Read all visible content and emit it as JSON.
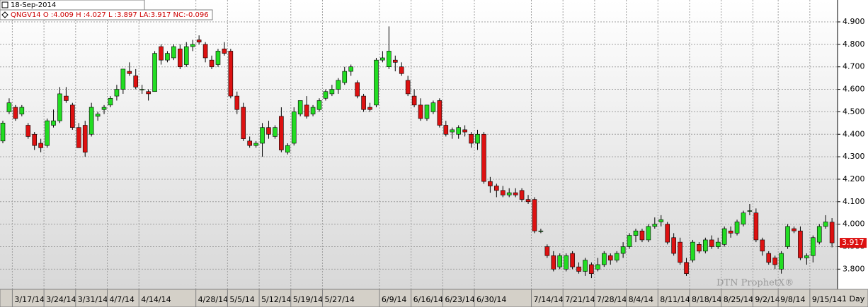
{
  "chart_data": {
    "type": "candlestick",
    "title": "18-Sep-2014",
    "subtitle": "QNGV14 O :4.009 H :4.027 L :3.897 LA:3.917 NC:-0.096",
    "watermark": "DTN ProphetX®",
    "interval": "1 Day",
    "up_color": "#22dd22",
    "down_color": "#dd1111",
    "grid": true,
    "ylim": [
      3.71,
      4.944
    ],
    "yticks": [
      {
        "value": 3.8,
        "label": "3.800"
      },
      {
        "value": 3.9,
        "label": "3.900"
      },
      {
        "value": 4.0,
        "label": "4.000"
      },
      {
        "value": 4.1,
        "label": "4.100"
      },
      {
        "value": 4.2,
        "label": "4.200"
      },
      {
        "value": 4.3,
        "label": "4.300"
      },
      {
        "value": 4.4,
        "label": "4.400"
      },
      {
        "value": 4.5,
        "label": "4.500"
      },
      {
        "value": 4.6,
        "label": "4.600"
      },
      {
        "value": 4.7,
        "label": "4.700"
      },
      {
        "value": 4.8,
        "label": "4.800"
      },
      {
        "value": 4.9,
        "label": "4.900"
      }
    ],
    "categories": [
      null,
      null,
      "3/17/14",
      null,
      null,
      null,
      null,
      "3/24/14",
      null,
      null,
      null,
      null,
      "3/31/14",
      null,
      null,
      null,
      null,
      "4/7/14",
      null,
      null,
      null,
      null,
      "4/14/14",
      null,
      null,
      null,
      null,
      null,
      null,
      null,
      null,
      "4/28/14",
      null,
      null,
      null,
      null,
      "5/5/14",
      null,
      null,
      null,
      null,
      "5/12/14",
      null,
      null,
      null,
      null,
      "5/19/14",
      null,
      null,
      null,
      null,
      "5/27/14",
      null,
      null,
      null,
      null,
      null,
      null,
      null,
      null,
      "6/9/14",
      null,
      null,
      null,
      null,
      "6/16/14",
      null,
      null,
      null,
      null,
      "6/23/14",
      null,
      null,
      null,
      null,
      "6/30/14",
      null,
      null,
      null,
      null,
      null,
      null,
      null,
      null,
      "7/14/14",
      null,
      null,
      null,
      null,
      "7/21/14",
      null,
      null,
      null,
      null,
      "7/28/14",
      null,
      null,
      null,
      null,
      "8/4/14",
      null,
      null,
      null,
      null,
      "8/11/14",
      null,
      null,
      null,
      null,
      "8/18/14",
      null,
      null,
      null,
      null,
      "8/25/14",
      null,
      null,
      null,
      null,
      "9/2/14",
      null,
      null,
      null,
      "9/8/14",
      null,
      null,
      null,
      null,
      "9/15/14",
      null,
      null,
      null
    ],
    "open": [
      4.37,
      4.5,
      4.52,
      4.49,
      4.44,
      4.4,
      4.36,
      4.35,
      4.44,
      4.46,
      4.57,
      4.53,
      4.43,
      4.44,
      4.4,
      4.48,
      4.51,
      4.53,
      4.57,
      4.6,
      4.68,
      4.66,
      4.6,
      4.59,
      4.59,
      4.79,
      4.73,
      4.74,
      4.78,
      4.71,
      4.79,
      4.82,
      4.8,
      4.73,
      4.71,
      4.78,
      4.77,
      4.57,
      4.52,
      4.37,
      4.35,
      4.36,
      4.43,
      4.39,
      4.48,
      4.32,
      4.36,
      4.49,
      4.53,
      4.49,
      4.51,
      4.56,
      4.58,
      4.6,
      4.63,
      4.68,
      4.63,
      4.57,
      4.52,
      4.53,
      4.73,
      4.7,
      4.73,
      4.7,
      4.64,
      4.57,
      4.53,
      4.47,
      4.5,
      4.55,
      4.44,
      4.41,
      4.4,
      4.42,
      4.4,
      4.36,
      4.4,
      4.19,
      4.17,
      4.15,
      4.13,
      4.14,
      4.15,
      4.11,
      4.11,
      3.97,
      3.9,
      3.86,
      3.81,
      3.8,
      3.87,
      3.81,
      3.79,
      3.82,
      3.8,
      3.82,
      3.86,
      3.84,
      3.87,
      3.9,
      3.95,
      3.97,
      3.93,
      3.99,
      4.01,
      4.0,
      3.94,
      3.92,
      3.83,
      3.84,
      3.91,
      3.88,
      3.93,
      3.9,
      3.91,
      3.97,
      3.96,
      4.0,
      4.06,
      4.05,
      3.93,
      3.87,
      3.85,
      3.8,
      3.9,
      3.98,
      3.97,
      3.85,
      3.86,
      3.92,
      3.99,
      4.009
    ],
    "high": [
      4.46,
      4.56,
      4.53,
      4.53,
      4.45,
      4.41,
      4.38,
      4.47,
      4.51,
      4.61,
      4.61,
      4.54,
      4.45,
      4.46,
      4.54,
      4.5,
      4.53,
      4.57,
      4.62,
      4.68,
      4.72,
      4.69,
      4.62,
      4.6,
      4.77,
      4.8,
      4.77,
      4.8,
      4.8,
      4.81,
      4.82,
      4.84,
      4.81,
      4.75,
      4.78,
      4.81,
      4.78,
      4.59,
      4.54,
      4.39,
      4.37,
      4.45,
      4.46,
      4.44,
      4.52,
      4.36,
      4.52,
      4.55,
      4.57,
      4.53,
      4.56,
      4.6,
      4.62,
      4.65,
      4.7,
      4.71,
      4.64,
      4.58,
      4.54,
      4.74,
      4.77,
      4.88,
      4.75,
      4.72,
      4.66,
      4.6,
      4.56,
      4.53,
      4.55,
      4.56,
      4.46,
      4.43,
      4.44,
      4.44,
      4.41,
      4.42,
      4.41,
      4.21,
      4.18,
      4.17,
      4.16,
      4.16,
      4.16,
      4.13,
      4.12,
      3.98,
      3.91,
      3.88,
      3.87,
      3.87,
      3.88,
      3.83,
      3.85,
      3.83,
      3.85,
      3.88,
      3.87,
      3.88,
      3.92,
      3.96,
      3.98,
      3.98,
      4.0,
      4.03,
      4.04,
      4.01,
      3.96,
      3.94,
      3.85,
      3.93,
      3.92,
      3.94,
      3.95,
      3.94,
      3.99,
      3.99,
      4.02,
      4.06,
      4.09,
      4.07,
      3.94,
      3.88,
      3.86,
      3.88,
      4.0,
      3.99,
      3.99,
      3.87,
      3.95,
      4.0,
      4.04,
      4.027
    ],
    "low": [
      4.36,
      4.49,
      4.46,
      4.48,
      4.38,
      4.33,
      4.32,
      4.34,
      4.43,
      4.45,
      4.54,
      4.42,
      4.34,
      4.3,
      4.39,
      4.46,
      4.49,
      4.52,
      4.55,
      4.58,
      4.66,
      4.6,
      4.58,
      4.55,
      4.59,
      4.71,
      4.72,
      4.73,
      4.69,
      4.7,
      4.77,
      4.8,
      4.72,
      4.69,
      4.7,
      4.75,
      4.56,
      4.49,
      4.37,
      4.34,
      4.34,
      4.3,
      4.38,
      4.38,
      4.32,
      4.31,
      4.35,
      4.48,
      4.47,
      4.48,
      4.5,
      4.55,
      4.57,
      4.58,
      4.62,
      4.66,
      4.56,
      4.5,
      4.5,
      4.52,
      4.72,
      4.69,
      4.68,
      4.66,
      4.57,
      4.52,
      4.46,
      4.46,
      4.49,
      4.43,
      4.39,
      4.38,
      4.38,
      4.39,
      4.34,
      4.33,
      4.18,
      4.14,
      4.12,
      4.12,
      4.12,
      4.12,
      4.1,
      4.09,
      3.96,
      3.96,
      3.85,
      3.79,
      3.8,
      3.79,
      3.8,
      3.78,
      3.77,
      3.76,
      3.79,
      3.81,
      3.82,
      3.83,
      3.85,
      3.89,
      3.92,
      3.92,
      3.92,
      3.98,
      3.99,
      3.91,
      3.86,
      3.82,
      3.77,
      3.83,
      3.87,
      3.87,
      3.89,
      3.89,
      3.9,
      3.94,
      3.95,
      3.99,
      4.04,
      3.92,
      3.86,
      3.82,
      3.8,
      3.78,
      3.89,
      3.96,
      3.84,
      3.82,
      3.83,
      3.91,
      3.98,
      3.897
    ],
    "close": [
      4.45,
      4.54,
      4.47,
      4.52,
      4.39,
      4.35,
      4.34,
      4.46,
      4.46,
      4.58,
      4.55,
      4.43,
      4.34,
      4.32,
      4.52,
      4.49,
      4.52,
      4.56,
      4.6,
      4.69,
      4.67,
      4.61,
      4.6,
      4.58,
      4.76,
      4.73,
      4.76,
      4.79,
      4.7,
      4.79,
      4.8,
      4.81,
      4.74,
      4.7,
      4.77,
      4.76,
      4.57,
      4.51,
      4.38,
      4.35,
      4.36,
      4.43,
      4.4,
      4.43,
      4.33,
      4.35,
      4.5,
      4.55,
      4.48,
      4.52,
      4.55,
      4.59,
      4.6,
      4.64,
      4.68,
      4.7,
      4.57,
      4.51,
      4.51,
      4.73,
      4.74,
      4.77,
      4.72,
      4.67,
      4.58,
      4.53,
      4.47,
      4.53,
      4.54,
      4.44,
      4.4,
      4.42,
      4.43,
      4.41,
      4.36,
      4.4,
      4.19,
      4.17,
      4.15,
      4.13,
      4.14,
      4.13,
      4.11,
      4.1,
      3.97,
      3.97,
      3.86,
      3.8,
      3.86,
      3.86,
      3.81,
      3.79,
      3.84,
      3.78,
      3.82,
      3.87,
      3.84,
      3.87,
      3.9,
      3.95,
      3.97,
      3.93,
      3.99,
      4.0,
      4.02,
      3.92,
      3.87,
      3.83,
      3.78,
      3.92,
      3.88,
      3.93,
      3.9,
      3.92,
      3.98,
      3.96,
      4.01,
      4.05,
      4.06,
      3.93,
      3.88,
      3.83,
      3.82,
      3.87,
      3.99,
      3.97,
      3.85,
      3.86,
      3.94,
      3.99,
      4.01,
      3.917
    ]
  }
}
